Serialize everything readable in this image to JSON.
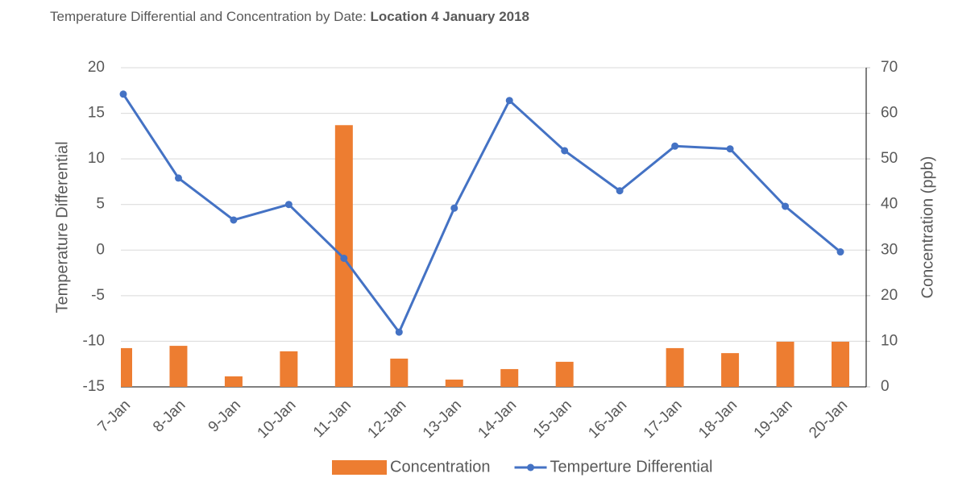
{
  "chart_data": {
    "type": "combo",
    "title": "Temperature  Differential and Concentration by Date:",
    "title_bold": "Location 4 January 2018",
    "y_label": "Temperature Differential",
    "y2_label": "Concentration (ppb)",
    "categories": [
      "7-Jan",
      "8-Jan",
      "9-Jan",
      "10-Jan",
      "11-Jan",
      "12-Jan",
      "13-Jan",
      "14-Jan",
      "15-Jan",
      "16-Jan",
      "17-Jan",
      "18-Jan",
      "19-Jan",
      "20-Jan"
    ],
    "series": [
      {
        "name": "Concentration",
        "type": "bar",
        "axis": "y2",
        "color": "#ed7d31",
        "values": [
          8.5,
          9,
          2.3,
          7.8,
          57.4,
          6.2,
          1.6,
          3.9,
          5.5,
          0,
          8.5,
          7.4,
          9.9,
          9.9
        ]
      },
      {
        "name": "Temperture Differential",
        "type": "line",
        "color": "#4472c4",
        "values": [
          17.1,
          7.9,
          3.3,
          5.0,
          -0.9,
          -9.0,
          4.6,
          16.4,
          10.9,
          6.5,
          11.4,
          11.1,
          4.8,
          -0.2
        ]
      }
    ],
    "ylim": [
      -15,
      20
    ],
    "yticks": [
      -15,
      -10,
      -5,
      0,
      5,
      10,
      15,
      20
    ],
    "y2lim": [
      0,
      70
    ],
    "y2ticks": [
      0,
      10,
      20,
      30,
      40,
      50,
      60,
      70
    ],
    "grid": true,
    "legend": "bottom"
  }
}
